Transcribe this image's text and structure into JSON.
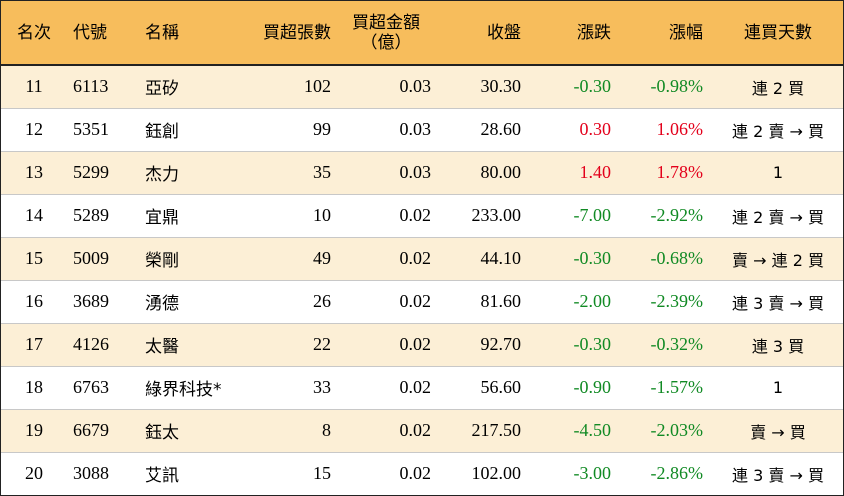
{
  "colors": {
    "header_bg": "#f7bd5c",
    "row_alt_bg": "#fcefd6",
    "up": "#e3001b",
    "down": "#118a24"
  },
  "headers": {
    "rank": "名次",
    "code": "代號",
    "name": "名稱",
    "net_lots": "買超張數",
    "net_amount_line1": "買超金額",
    "net_amount_line2": "（億）",
    "close": "收盤",
    "change": "漲跌",
    "pct": "漲幅",
    "days": "連買天數"
  },
  "rows": [
    {
      "rank": "11",
      "code": "6113",
      "name": "亞矽",
      "net_lots": "102",
      "net_amount": "0.03",
      "close": "30.30",
      "change": "-0.30",
      "pct": "-0.98%",
      "days": "連 2 買",
      "dir": "down"
    },
    {
      "rank": "12",
      "code": "5351",
      "name": "鈺創",
      "net_lots": "99",
      "net_amount": "0.03",
      "close": "28.60",
      "change": "0.30",
      "pct": "1.06%",
      "days": "連 2 賣 → 買",
      "dir": "up"
    },
    {
      "rank": "13",
      "code": "5299",
      "name": "杰力",
      "net_lots": "35",
      "net_amount": "0.03",
      "close": "80.00",
      "change": "1.40",
      "pct": "1.78%",
      "days": "1",
      "dir": "up"
    },
    {
      "rank": "14",
      "code": "5289",
      "name": "宜鼎",
      "net_lots": "10",
      "net_amount": "0.02",
      "close": "233.00",
      "change": "-7.00",
      "pct": "-2.92%",
      "days": "連 2 賣 → 買",
      "dir": "down"
    },
    {
      "rank": "15",
      "code": "5009",
      "name": "榮剛",
      "net_lots": "49",
      "net_amount": "0.02",
      "close": "44.10",
      "change": "-0.30",
      "pct": "-0.68%",
      "days": "賣 → 連 2 買",
      "dir": "down"
    },
    {
      "rank": "16",
      "code": "3689",
      "name": "湧德",
      "net_lots": "26",
      "net_amount": "0.02",
      "close": "81.60",
      "change": "-2.00",
      "pct": "-2.39%",
      "days": "連 3 賣 → 買",
      "dir": "down"
    },
    {
      "rank": "17",
      "code": "4126",
      "name": "太醫",
      "net_lots": "22",
      "net_amount": "0.02",
      "close": "92.70",
      "change": "-0.30",
      "pct": "-0.32%",
      "days": "連 3 買",
      "dir": "down"
    },
    {
      "rank": "18",
      "code": "6763",
      "name": "綠界科技*",
      "net_lots": "33",
      "net_amount": "0.02",
      "close": "56.60",
      "change": "-0.90",
      "pct": "-1.57%",
      "days": "1",
      "dir": "down"
    },
    {
      "rank": "19",
      "code": "6679",
      "name": "鈺太",
      "net_lots": "8",
      "net_amount": "0.02",
      "close": "217.50",
      "change": "-4.50",
      "pct": "-2.03%",
      "days": "賣 → 買",
      "dir": "down"
    },
    {
      "rank": "20",
      "code": "3088",
      "name": "艾訊",
      "net_lots": "15",
      "net_amount": "0.02",
      "close": "102.00",
      "change": "-3.00",
      "pct": "-2.86%",
      "days": "連 3 賣 → 買",
      "dir": "down"
    }
  ]
}
